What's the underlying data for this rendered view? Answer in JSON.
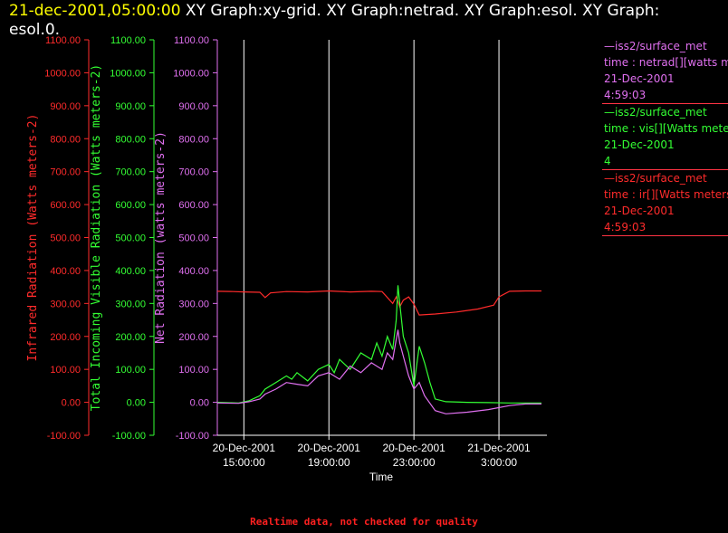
{
  "title": {
    "timestamp": "21-dec-2001,05:00:00",
    "text": "  XY Graph:xy-grid.  XY Graph:netrad.  XY Graph:esol.  XY Graph: esol.0."
  },
  "colors": {
    "background": "#000000",
    "infrared": "#ff2b2b",
    "visible": "#33ff33",
    "net": "#e070f0",
    "grid": "#ffffff",
    "timestamp": "#ffff00",
    "footer": "#ff2020"
  },
  "legend": [
    {
      "line1": "—iss2/surface_met",
      "line2": "time : netrad[][watts me",
      "line3": "21-Dec-2001",
      "line4": "4:59:03",
      "color": "#e070f0"
    },
    {
      "line1": "—iss2/surface_met",
      "line2": "time : vis[][Watts meter",
      "line3": "21-Dec-2001",
      "line4": "4",
      "color": "#33ff33"
    },
    {
      "line1": "—iss2/surface_met",
      "line2": "time : ir[][Watts meters",
      "line3": "21-Dec-2001",
      "line4": "4:59:03",
      "color": "#ff2b2b"
    }
  ],
  "footer": "Realtime data, not checked for quality",
  "chart_data": {
    "type": "line",
    "xlabel": "Time",
    "x_range": [
      "2001-12-20 13:45",
      "2001-12-21 05:00"
    ],
    "x_ticks": [
      {
        "t": "2001-12-20 15:00",
        "label1": "20-Dec-2001",
        "label2": "15:00:00"
      },
      {
        "t": "2001-12-20 19:00",
        "label1": "20-Dec-2001",
        "label2": "19:00:00"
      },
      {
        "t": "2001-12-20 23:00",
        "label1": "20-Dec-2001",
        "label2": "23:00:00"
      },
      {
        "t": "2001-12-21 03:00",
        "label1": "21-Dec-2001",
        "label2": "3:00:00"
      }
    ],
    "grid_x": true,
    "axes": [
      {
        "id": "ir",
        "label": "Infrared Radiation (Watts meters-2)",
        "ylim": [
          -100,
          1100
        ],
        "ticks": [
          "1100.00",
          "1000.00",
          "900.00",
          "800.00",
          "700.00",
          "600.00",
          "500.00",
          "400.00",
          "300.00",
          "200.00",
          "100.00",
          "0.00",
          "-100.00"
        ],
        "color": "#ff2b2b"
      },
      {
        "id": "vis",
        "label": "Total Incoming Visible Radiation (Watts meters-2)",
        "ylim": [
          -100,
          1100
        ],
        "ticks": [
          "1100.00",
          "1000.00",
          "900.00",
          "800.00",
          "700.00",
          "600.00",
          "500.00",
          "400.00",
          "300.00",
          "200.00",
          "100.00",
          "0.00",
          "-100.00"
        ],
        "color": "#33ff33"
      },
      {
        "id": "net",
        "label": "Net Radiation (watts meters-2)",
        "ylim": [
          -100,
          1100
        ],
        "ticks": [
          "1100.00",
          "1000.00",
          "900.00",
          "800.00",
          "700.00",
          "600.00",
          "500.00",
          "400.00",
          "300.00",
          "200.00",
          "100.00",
          "0.00",
          "-100.00"
        ],
        "color": "#e070f0"
      }
    ],
    "series": [
      {
        "id": "ir",
        "color": "#ff2b2b",
        "points": [
          [
            "2001-12-20 13:45",
            337
          ],
          [
            "2001-12-20 14:30",
            336
          ],
          [
            "2001-12-20 15:00",
            335
          ],
          [
            "2001-12-20 15:45",
            334
          ],
          [
            "2001-12-20 16:00",
            318
          ],
          [
            "2001-12-20 16:15",
            332
          ],
          [
            "2001-12-20 17:00",
            336
          ],
          [
            "2001-12-20 18:00",
            335
          ],
          [
            "2001-12-20 19:00",
            338
          ],
          [
            "2001-12-20 20:00",
            335
          ],
          [
            "2001-12-20 21:00",
            337
          ],
          [
            "2001-12-20 21:30",
            336
          ],
          [
            "2001-12-20 22:00",
            300
          ],
          [
            "2001-12-20 22:10",
            320
          ],
          [
            "2001-12-20 22:20",
            290
          ],
          [
            "2001-12-20 22:30",
            310
          ],
          [
            "2001-12-20 22:45",
            320
          ],
          [
            "2001-12-20 23:00",
            298
          ],
          [
            "2001-12-20 23:15",
            265
          ],
          [
            "2001-12-21 00:00",
            268
          ],
          [
            "2001-12-21 01:00",
            274
          ],
          [
            "2001-12-21 02:00",
            283
          ],
          [
            "2001-12-21 02:45",
            295
          ],
          [
            "2001-12-21 03:00",
            320
          ],
          [
            "2001-12-21 03:30",
            337
          ],
          [
            "2001-12-21 04:15",
            338
          ],
          [
            "2001-12-21 05:00",
            338
          ]
        ]
      },
      {
        "id": "vis",
        "color": "#33ff33",
        "points": [
          [
            "2001-12-20 13:45",
            0
          ],
          [
            "2001-12-20 14:45",
            -2
          ],
          [
            "2001-12-20 15:15",
            5
          ],
          [
            "2001-12-20 15:45",
            20
          ],
          [
            "2001-12-20 16:00",
            40
          ],
          [
            "2001-12-20 16:30",
            60
          ],
          [
            "2001-12-20 17:00",
            80
          ],
          [
            "2001-12-20 17:15",
            70
          ],
          [
            "2001-12-20 17:30",
            90
          ],
          [
            "2001-12-20 18:00",
            65
          ],
          [
            "2001-12-20 18:30",
            100
          ],
          [
            "2001-12-20 19:00",
            115
          ],
          [
            "2001-12-20 19:15",
            90
          ],
          [
            "2001-12-20 19:30",
            130
          ],
          [
            "2001-12-20 20:00",
            100
          ],
          [
            "2001-12-20 20:30",
            150
          ],
          [
            "2001-12-20 21:00",
            130
          ],
          [
            "2001-12-20 21:15",
            180
          ],
          [
            "2001-12-20 21:30",
            140
          ],
          [
            "2001-12-20 21:45",
            200
          ],
          [
            "2001-12-20 22:00",
            160
          ],
          [
            "2001-12-20 22:10",
            250
          ],
          [
            "2001-12-20 22:15",
            355
          ],
          [
            "2001-12-20 22:20",
            300
          ],
          [
            "2001-12-20 22:30",
            200
          ],
          [
            "2001-12-20 22:45",
            150
          ],
          [
            "2001-12-20 23:00",
            50
          ],
          [
            "2001-12-20 23:15",
            170
          ],
          [
            "2001-12-20 23:30",
            120
          ],
          [
            "2001-12-20 23:45",
            60
          ],
          [
            "2001-12-21 00:00",
            10
          ],
          [
            "2001-12-21 00:30",
            2
          ],
          [
            "2001-12-21 01:30",
            0
          ],
          [
            "2001-12-21 02:30",
            -1
          ],
          [
            "2001-12-21 03:30",
            -2
          ],
          [
            "2001-12-21 05:00",
            -2
          ]
        ]
      },
      {
        "id": "net",
        "color": "#e070f0",
        "points": [
          [
            "2001-12-20 13:45",
            -2
          ],
          [
            "2001-12-20 14:45",
            -3
          ],
          [
            "2001-12-20 15:15",
            2
          ],
          [
            "2001-12-20 15:45",
            10
          ],
          [
            "2001-12-20 16:00",
            25
          ],
          [
            "2001-12-20 16:30",
            40
          ],
          [
            "2001-12-20 17:00",
            60
          ],
          [
            "2001-12-20 17:30",
            55
          ],
          [
            "2001-12-20 18:00",
            50
          ],
          [
            "2001-12-20 18:30",
            80
          ],
          [
            "2001-12-20 19:00",
            90
          ],
          [
            "2001-12-20 19:30",
            70
          ],
          [
            "2001-12-20 20:00",
            110
          ],
          [
            "2001-12-20 20:30",
            90
          ],
          [
            "2001-12-20 21:00",
            120
          ],
          [
            "2001-12-20 21:30",
            100
          ],
          [
            "2001-12-20 21:45",
            150
          ],
          [
            "2001-12-20 22:00",
            130
          ],
          [
            "2001-12-20 22:15",
            220
          ],
          [
            "2001-12-20 22:20",
            180
          ],
          [
            "2001-12-20 22:30",
            140
          ],
          [
            "2001-12-20 22:45",
            80
          ],
          [
            "2001-12-20 23:00",
            40
          ],
          [
            "2001-12-20 23:15",
            60
          ],
          [
            "2001-12-20 23:30",
            20
          ],
          [
            "2001-12-21 00:00",
            -25
          ],
          [
            "2001-12-21 00:30",
            -35
          ],
          [
            "2001-12-21 01:30",
            -30
          ],
          [
            "2001-12-21 02:30",
            -22
          ],
          [
            "2001-12-21 03:30",
            -10
          ],
          [
            "2001-12-21 04:15",
            -5
          ],
          [
            "2001-12-21 05:00",
            -5
          ]
        ]
      }
    ]
  }
}
